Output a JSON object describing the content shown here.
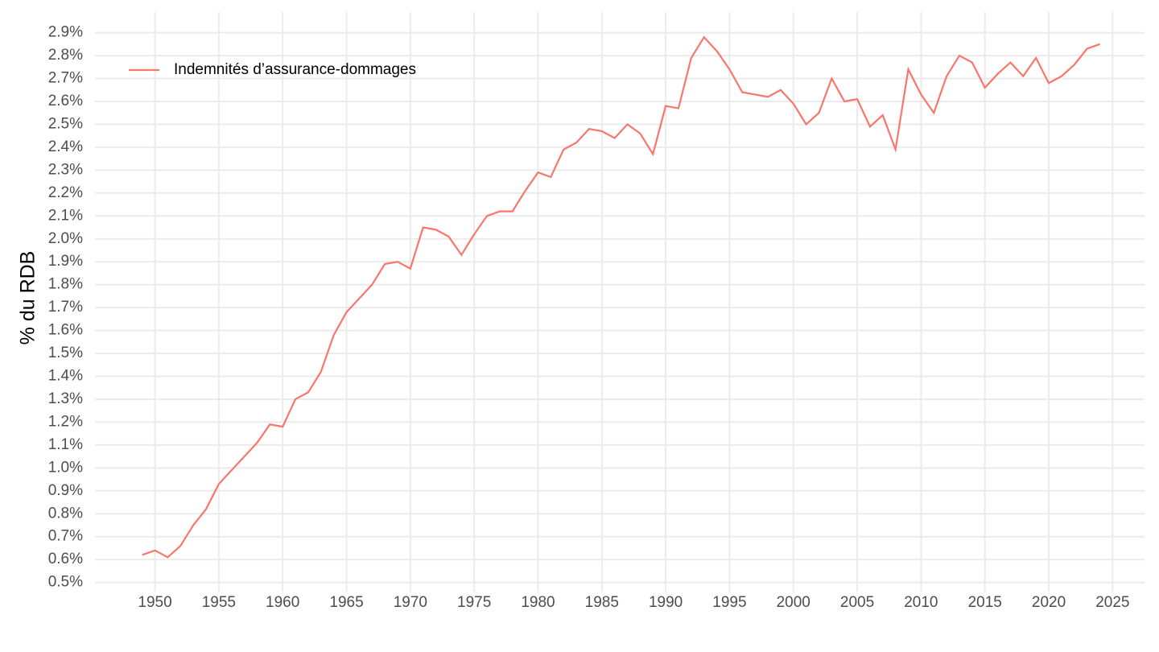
{
  "chart_data": {
    "type": "line",
    "y_label": "% du RDB",
    "x": [
      1949,
      1950,
      1951,
      1952,
      1953,
      1954,
      1955,
      1956,
      1957,
      1958,
      1959,
      1960,
      1961,
      1962,
      1963,
      1964,
      1965,
      1966,
      1967,
      1968,
      1969,
      1970,
      1971,
      1972,
      1973,
      1974,
      1975,
      1976,
      1977,
      1978,
      1979,
      1980,
      1981,
      1982,
      1983,
      1984,
      1985,
      1986,
      1987,
      1988,
      1989,
      1990,
      1991,
      1992,
      1993,
      1994,
      1995,
      1996,
      1997,
      1998,
      1999,
      2000,
      2001,
      2002,
      2003,
      2004,
      2005,
      2006,
      2007,
      2008,
      2009,
      2010,
      2011,
      2012,
      2013,
      2014,
      2015,
      2016,
      2017,
      2018,
      2019,
      2020,
      2021,
      2022,
      2023,
      2024
    ],
    "series": [
      {
        "name": "Indemnités d’assurance-dommages",
        "color": "#f8766d",
        "values": [
          0.62,
          0.64,
          0.61,
          0.66,
          0.75,
          0.82,
          0.93,
          0.99,
          1.05,
          1.11,
          1.19,
          1.18,
          1.3,
          1.33,
          1.42,
          1.58,
          1.68,
          1.74,
          1.8,
          1.89,
          1.9,
          1.87,
          2.05,
          2.04,
          2.01,
          1.93,
          2.02,
          2.1,
          2.12,
          2.12,
          2.21,
          2.29,
          2.27,
          2.39,
          2.42,
          2.48,
          2.47,
          2.44,
          2.5,
          2.46,
          2.37,
          2.58,
          2.57,
          2.79,
          2.88,
          2.82,
          2.74,
          2.64,
          2.63,
          2.62,
          2.65,
          2.59,
          2.5,
          2.55,
          2.7,
          2.6,
          2.61,
          2.49,
          2.54,
          2.39,
          2.74,
          2.63,
          2.55,
          2.71,
          2.8,
          2.77,
          2.66,
          2.72,
          2.77,
          2.71,
          2.79,
          2.68,
          2.71,
          2.76,
          2.83,
          2.85
        ]
      }
    ],
    "xlim": [
      1945.3,
      2027.5
    ],
    "xticks": [
      1950,
      1955,
      1960,
      1965,
      1970,
      1975,
      1980,
      1985,
      1990,
      1995,
      2000,
      2005,
      2010,
      2015,
      2020,
      2025
    ],
    "ylim": [
      0.46,
      2.99
    ],
    "yticks": [
      {
        "value": 0.5,
        "label": "0.5%"
      },
      {
        "value": 0.6,
        "label": "0.6%"
      },
      {
        "value": 0.7,
        "label": "0.7%"
      },
      {
        "value": 0.8,
        "label": "0.8%"
      },
      {
        "value": 0.9,
        "label": "0.9%"
      },
      {
        "value": 1.0,
        "label": "1.0%"
      },
      {
        "value": 1.1,
        "label": "1.1%"
      },
      {
        "value": 1.2,
        "label": "1.2%"
      },
      {
        "value": 1.3,
        "label": "1.3%"
      },
      {
        "value": 1.4,
        "label": "1.4%"
      },
      {
        "value": 1.5,
        "label": "1.5%"
      },
      {
        "value": 1.6,
        "label": "1.6%"
      },
      {
        "value": 1.7,
        "label": "1.7%"
      },
      {
        "value": 1.8,
        "label": "1.8%"
      },
      {
        "value": 1.9,
        "label": "1.9%"
      },
      {
        "value": 2.0,
        "label": "2.0%"
      },
      {
        "value": 2.1,
        "label": "2.1%"
      },
      {
        "value": 2.2,
        "label": "2.2%"
      },
      {
        "value": 2.3,
        "label": "2.3%"
      },
      {
        "value": 2.4,
        "label": "2.4%"
      },
      {
        "value": 2.5,
        "label": "2.5%"
      },
      {
        "value": 2.6,
        "label": "2.6%"
      },
      {
        "value": 2.7,
        "label": "2.7%"
      },
      {
        "value": 2.8,
        "label": "2.8%"
      },
      {
        "value": 2.9,
        "label": "2.9%"
      }
    ],
    "grid": true,
    "legend": "top-left"
  }
}
